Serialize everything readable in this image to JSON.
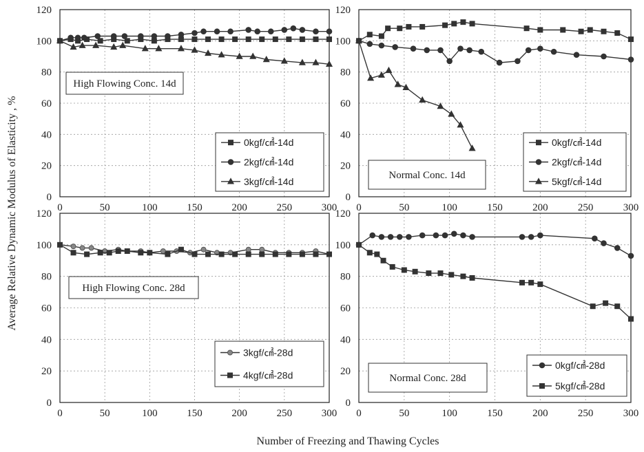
{
  "figure": {
    "ylabel": "Average Relative Dynamic Modulus of  Elasticity , %",
    "xlabel": "Number of Freezing and Thawing Cycles"
  },
  "chart_data": [
    {
      "type": "line",
      "caption": "High Flowing Conc. 14d",
      "xlim": [
        0,
        300
      ],
      "ylim": [
        0,
        120
      ],
      "xticks": [
        "0",
        "50",
        "100",
        "150",
        "200",
        "250",
        "300"
      ],
      "yticks": [
        "0",
        "20",
        "40",
        "60",
        "80",
        "100",
        "120"
      ],
      "grid": true,
      "legend_position": "bottom-right",
      "series": [
        {
          "name": "0kgf/㎠-14d",
          "marker": "square",
          "x": [
            0,
            12,
            20,
            30,
            45,
            60,
            75,
            90,
            105,
            120,
            135,
            150,
            165,
            180,
            195,
            210,
            225,
            240,
            255,
            270,
            285,
            300
          ],
          "y": [
            100,
            101,
            100,
            101,
            100,
            101,
            100,
            101,
            100,
            101,
            101,
            101,
            101,
            101,
            101,
            101,
            101,
            101,
            101,
            101,
            101,
            101
          ]
        },
        {
          "name": "2kgf/㎠-14d",
          "marker": "circle",
          "x": [
            0,
            12,
            20,
            27,
            42,
            60,
            72,
            90,
            105,
            120,
            135,
            150,
            160,
            175,
            190,
            210,
            220,
            235,
            250,
            260,
            270,
            285,
            300
          ],
          "y": [
            100,
            102,
            102,
            102,
            103,
            103,
            103,
            103,
            103,
            103,
            104,
            105,
            106,
            106,
            106,
            107,
            106,
            106,
            107,
            108,
            107,
            106,
            106
          ]
        },
        {
          "name": "3kgf/㎠-14d",
          "marker": "triangle",
          "x": [
            0,
            15,
            25,
            40,
            60,
            70,
            95,
            110,
            135,
            150,
            165,
            180,
            200,
            215,
            230,
            250,
            270,
            285,
            300
          ],
          "y": [
            100,
            96,
            97,
            97,
            96,
            97,
            95,
            95,
            95,
            94,
            92,
            91,
            90,
            90,
            88,
            87,
            86,
            86,
            85
          ]
        }
      ]
    },
    {
      "type": "line",
      "caption": "Normal Conc. 14d",
      "xlim": [
        0,
        300
      ],
      "ylim": [
        0,
        120
      ],
      "xticks": [
        "0",
        "50",
        "100",
        "150",
        "200",
        "250",
        "300"
      ],
      "yticks": [
        "0",
        "20",
        "40",
        "60",
        "80",
        "100",
        "120"
      ],
      "grid": true,
      "legend_position": "bottom-right",
      "series": [
        {
          "name": "0kgf/㎠-14d",
          "marker": "square",
          "x": [
            0,
            12,
            25,
            32,
            45,
            55,
            70,
            95,
            105,
            115,
            125,
            185,
            200,
            225,
            245,
            255,
            270,
            285,
            300
          ],
          "y": [
            100,
            104,
            103,
            108,
            108,
            109,
            109,
            110,
            111,
            112,
            111,
            108,
            107,
            107,
            106,
            107,
            106,
            105,
            101
          ]
        },
        {
          "name": "2kgf/㎠-14d",
          "marker": "circle",
          "x": [
            0,
            12,
            25,
            40,
            60,
            75,
            90,
            100,
            112,
            122,
            135,
            155,
            175,
            187,
            200,
            215,
            240,
            270,
            300
          ],
          "y": [
            100,
            98,
            97,
            96,
            95,
            94,
            94,
            87,
            95,
            94,
            93,
            86,
            87,
            94,
            95,
            93,
            91,
            90,
            88
          ]
        },
        {
          "name": "5kgf/㎠-14d",
          "marker": "triangle",
          "x": [
            0,
            13,
            25,
            33,
            43,
            52,
            70,
            90,
            102,
            112,
            125
          ],
          "y": [
            100,
            76,
            78,
            81,
            72,
            70,
            62,
            58,
            53,
            46,
            31
          ]
        }
      ]
    },
    {
      "type": "line",
      "caption": "High Flowing Conc. 28d",
      "xlim": [
        0,
        300
      ],
      "ylim": [
        0,
        120
      ],
      "xticks": [
        "0",
        "50",
        "100",
        "150",
        "200",
        "250",
        "300"
      ],
      "yticks": [
        "0",
        "20",
        "40",
        "60",
        "80",
        "100",
        "120"
      ],
      "grid": true,
      "legend_position": "bottom-right",
      "series": [
        {
          "name": "3kgf/㎠-28d",
          "marker": "open-circle",
          "x": [
            0,
            15,
            25,
            35,
            50,
            65,
            75,
            90,
            100,
            115,
            130,
            145,
            160,
            175,
            190,
            210,
            225,
            240,
            255,
            270,
            285,
            300
          ],
          "y": [
            100,
            99,
            98,
            98,
            96,
            97,
            96,
            96,
            95,
            96,
            96,
            95,
            97,
            95,
            95,
            97,
            97,
            95,
            95,
            95,
            96,
            94
          ]
        },
        {
          "name": "4kgf/㎠-28d",
          "marker": "square",
          "x": [
            0,
            15,
            30,
            45,
            55,
            65,
            75,
            90,
            100,
            120,
            135,
            150,
            165,
            180,
            195,
            210,
            225,
            240,
            255,
            270,
            285,
            300
          ],
          "y": [
            100,
            95,
            94,
            95,
            95,
            96,
            96,
            95,
            95,
            94,
            97,
            94,
            94,
            94,
            94,
            94,
            94,
            94,
            94,
            94,
            94,
            94
          ]
        }
      ]
    },
    {
      "type": "line",
      "caption": "Normal Conc. 28d",
      "xlim": [
        0,
        300
      ],
      "ylim": [
        0,
        120
      ],
      "xticks": [
        "0",
        "50",
        "100",
        "150",
        "200",
        "250",
        "300"
      ],
      "yticks": [
        "0",
        "20",
        "40",
        "60",
        "80",
        "100",
        "120"
      ],
      "grid": true,
      "legend_position": "bottom-right",
      "series": [
        {
          "name": "0kgf/㎠-28d",
          "marker": "circle",
          "x": [
            0,
            15,
            25,
            35,
            45,
            55,
            70,
            85,
            95,
            105,
            115,
            125,
            180,
            190,
            200,
            260,
            270,
            285,
            300
          ],
          "y": [
            100,
            106,
            105,
            105,
            105,
            105,
            106,
            106,
            106,
            107,
            106,
            105,
            105,
            105,
            106,
            104,
            101,
            98,
            93
          ]
        },
        {
          "name": "5kgf/㎠-28d",
          "marker": "square",
          "x": [
            0,
            12,
            20,
            27,
            37,
            50,
            62,
            77,
            90,
            102,
            115,
            125,
            180,
            190,
            200,
            258,
            272,
            285,
            300
          ],
          "y": [
            100,
            95,
            94,
            90,
            86,
            84,
            83,
            82,
            82,
            81,
            80,
            79,
            76,
            76,
            75,
            61,
            63,
            61,
            53
          ]
        }
      ]
    }
  ]
}
